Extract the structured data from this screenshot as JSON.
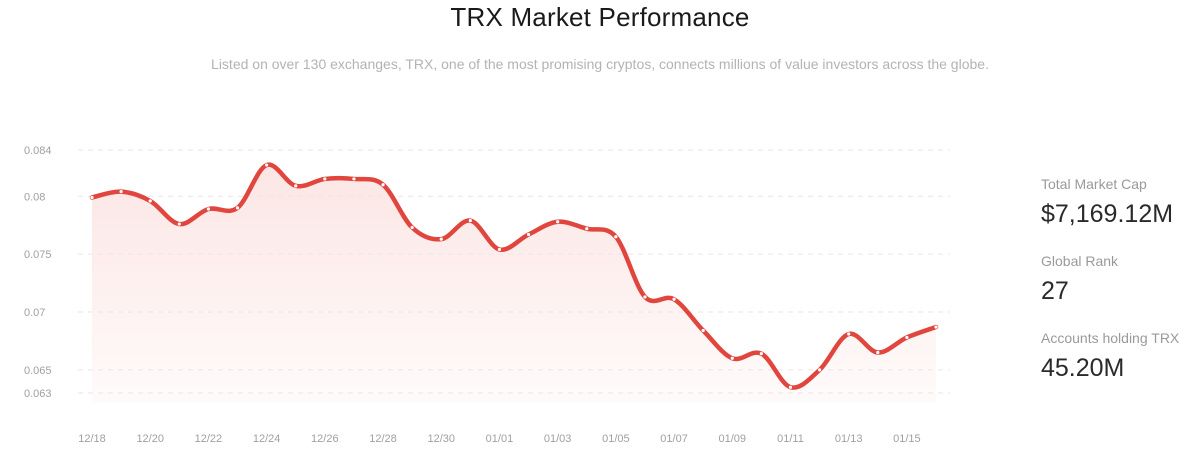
{
  "header": {
    "title": "TRX Market Performance",
    "subtitle": "Listed on over 130 exchanges, TRX, one of the most promising cryptos, connects millions of value investors across the globe."
  },
  "stats": [
    {
      "label": "Total Market Cap",
      "value": "$7,169.12M"
    },
    {
      "label": "Global Rank",
      "value": "27"
    },
    {
      "label": "Accounts holding TRX",
      "value": "45.20M"
    }
  ],
  "colors": {
    "line": "#e0463e",
    "fill": "#fbe3e1",
    "grid": "#e6e6e6"
  },
  "chart_data": {
    "type": "line",
    "title": "",
    "xlabel": "",
    "ylabel": "",
    "grid": true,
    "ylim": [
      0.063,
      0.084
    ],
    "y_ticks": [
      "0.084",
      "0.08",
      "0.075",
      "0.07",
      "0.065",
      "0.063"
    ],
    "x_ticks": [
      "12/18",
      "12/20",
      "12/22",
      "12/24",
      "12/26",
      "12/28",
      "12/30",
      "01/01",
      "01/03",
      "01/05",
      "01/07",
      "01/09",
      "01/11",
      "01/13",
      "01/15"
    ],
    "series": [
      {
        "x": [
          "12/18",
          "12/19",
          "12/20",
          "12/21",
          "12/22",
          "12/23",
          "12/24",
          "12/25",
          "12/26",
          "12/27",
          "12/28",
          "12/29",
          "12/30",
          "12/31",
          "01/01",
          "01/02",
          "01/03",
          "01/04",
          "01/05",
          "01/06",
          "01/07",
          "01/08",
          "01/09",
          "01/10",
          "01/11",
          "01/12",
          "01/13",
          "01/14",
          "01/15",
          "01/16"
        ],
        "values": [
          0.0799,
          0.0804,
          0.0796,
          0.0776,
          0.0789,
          0.079,
          0.0827,
          0.0809,
          0.0815,
          0.0815,
          0.081,
          0.0773,
          0.0763,
          0.0779,
          0.0754,
          0.0767,
          0.0778,
          0.0772,
          0.0765,
          0.0713,
          0.0711,
          0.0684,
          0.066,
          0.0664,
          0.0635,
          0.065,
          0.0681,
          0.0665,
          0.0678,
          0.0687
        ]
      }
    ]
  }
}
